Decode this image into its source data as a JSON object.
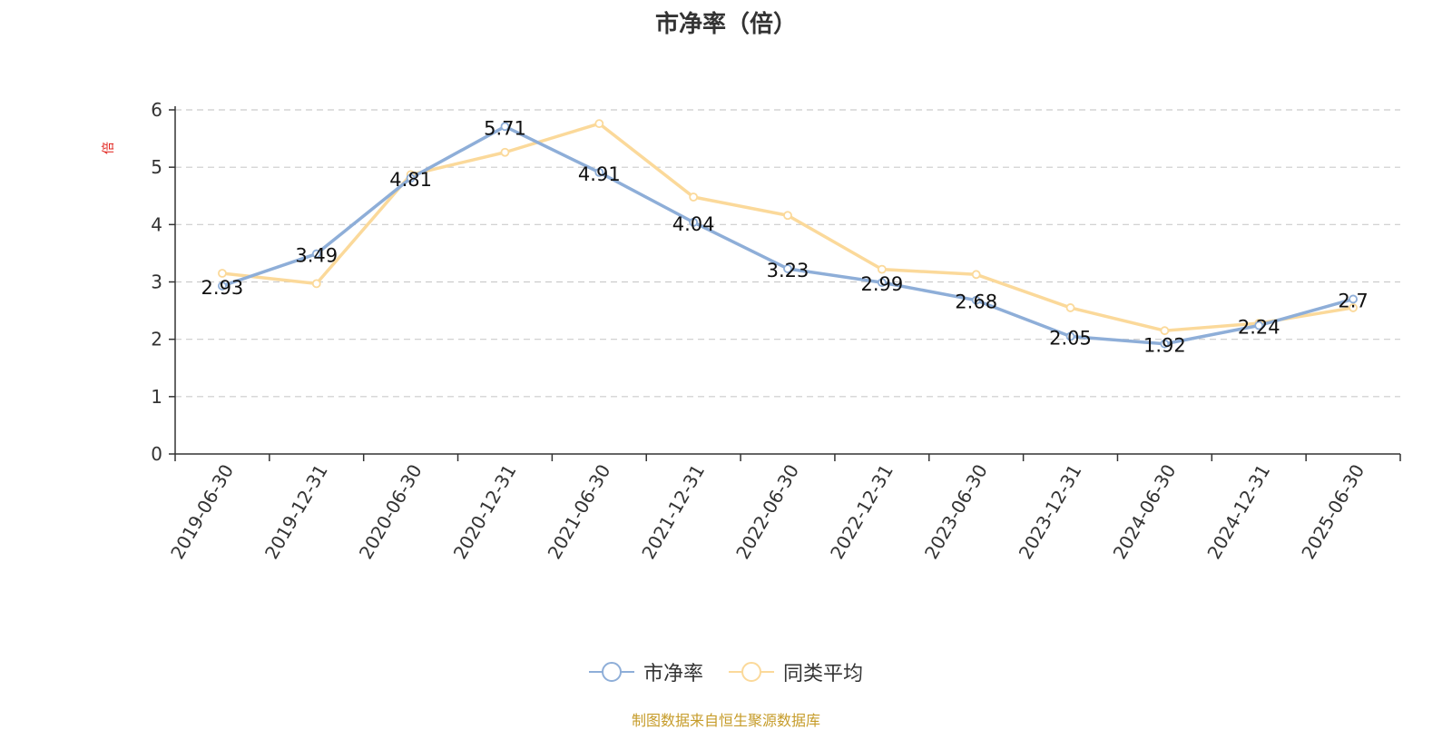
{
  "chart_data": {
    "type": "line",
    "title": "市净率（倍）",
    "ylabel": "倍",
    "xlabel": "",
    "ylim": [
      0,
      6
    ],
    "yticks": [
      0,
      1,
      2,
      3,
      4,
      5,
      6
    ],
    "grid": true,
    "legend_position": "bottom",
    "categories": [
      "2019-06-30",
      "2019-12-31",
      "2020-06-30",
      "2020-12-31",
      "2021-06-30",
      "2021-12-31",
      "2022-06-30",
      "2022-12-31",
      "2023-06-30",
      "2023-12-31",
      "2024-06-30",
      "2024-12-31",
      "2025-06-30"
    ],
    "series": [
      {
        "name": "市净率",
        "color": "#8eaed8",
        "values": [
          2.93,
          3.49,
          4.81,
          5.71,
          4.91,
          4.04,
          3.23,
          2.99,
          2.68,
          2.05,
          1.92,
          2.24,
          2.7
        ],
        "labels": [
          "2.93",
          "3.49",
          "4.81",
          "5.71",
          "4.91",
          "4.04",
          "3.23",
          "2.99",
          "2.68",
          "2.05",
          "1.92",
          "2.24",
          "2.7"
        ]
      },
      {
        "name": "同类平均",
        "color": "#fbd99a",
        "values": [
          3.15,
          2.97,
          4.87,
          5.26,
          5.76,
          4.48,
          4.16,
          3.22,
          3.13,
          2.55,
          2.15,
          2.28,
          2.55
        ]
      }
    ],
    "source": "制图数据来自恒生聚源数据库"
  }
}
